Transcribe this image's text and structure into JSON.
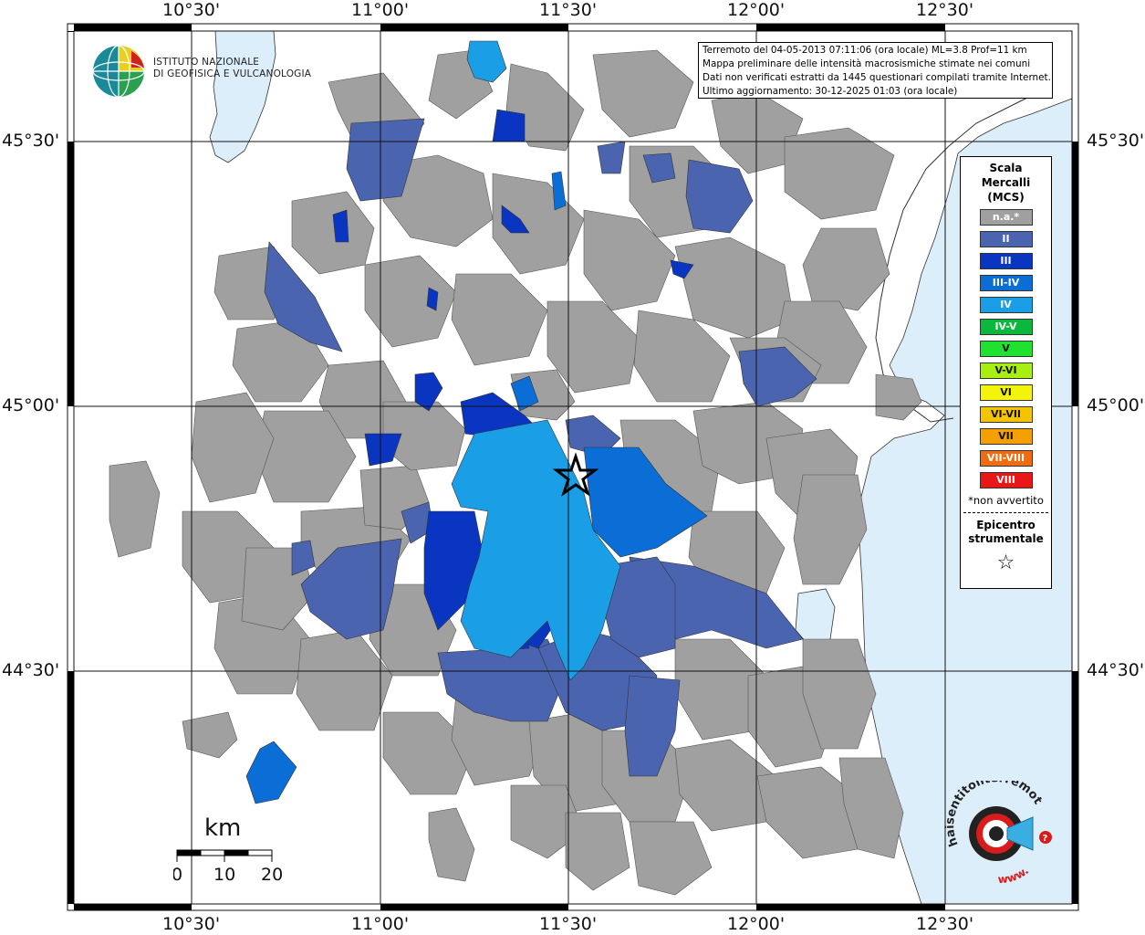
{
  "header": {
    "info_lines": [
      "Terremoto del 04-05-2013 07:11:06 (ora locale) ML=3.8 Prof=11 km",
      "Mappa preliminare delle intensità macrosismiche stimate nei comuni",
      "Dati non verificati estratti da 1445 questionari compilati tramite Internet.",
      "Ultimo aggiornamento: 30-12-2025 01:03 (ora locale)"
    ]
  },
  "logo": {
    "line1": "ISTITUTO NAZIONALE",
    "line2": "DI GEOFISICA E VULCANOLOGIA",
    "icon": "ingv-globe-logo"
  },
  "axes": {
    "lon_ticks": [
      "10°30'",
      "11°00'",
      "11°30'",
      "12°00'",
      "12°30'"
    ],
    "lat_ticks": [
      "45°30'",
      "45°00'",
      "44°30'"
    ]
  },
  "legend": {
    "title_lines": [
      "Scala",
      "Mercalli",
      "(MCS)"
    ],
    "items": [
      {
        "label": "n.a.*",
        "color": "#a0a0a0"
      },
      {
        "label": "II",
        "color": "#4a64b0"
      },
      {
        "label": "III",
        "color": "#0a35c0"
      },
      {
        "label": "III-IV",
        "color": "#0a6ed6"
      },
      {
        "label": "IV",
        "color": "#1a9ee6"
      },
      {
        "label": "IV-V",
        "color": "#0cb83c"
      },
      {
        "label": "V",
        "color": "#20e030"
      },
      {
        "label": "V-VI",
        "color": "#a8ee10"
      },
      {
        "label": "VI",
        "color": "#f4f40a"
      },
      {
        "label": "VI-VII",
        "color": "#f4c400"
      },
      {
        "label": "VII",
        "color": "#f4a000"
      },
      {
        "label": "VII-VIII",
        "color": "#f06c10"
      },
      {
        "label": "VIII",
        "color": "#e81818"
      }
    ],
    "note": "*non avvertito",
    "epicenter_lines": [
      "Epicentro",
      "strumentale"
    ],
    "epicenter_icon": "star-icon"
  },
  "scale_bar": {
    "unit": "km",
    "labels": [
      "0",
      "10",
      "20"
    ]
  },
  "watermark": {
    "text": "haisentitoilterremoto.it",
    "url_text": "www.",
    "icon": "target-megaphone-logo"
  }
}
